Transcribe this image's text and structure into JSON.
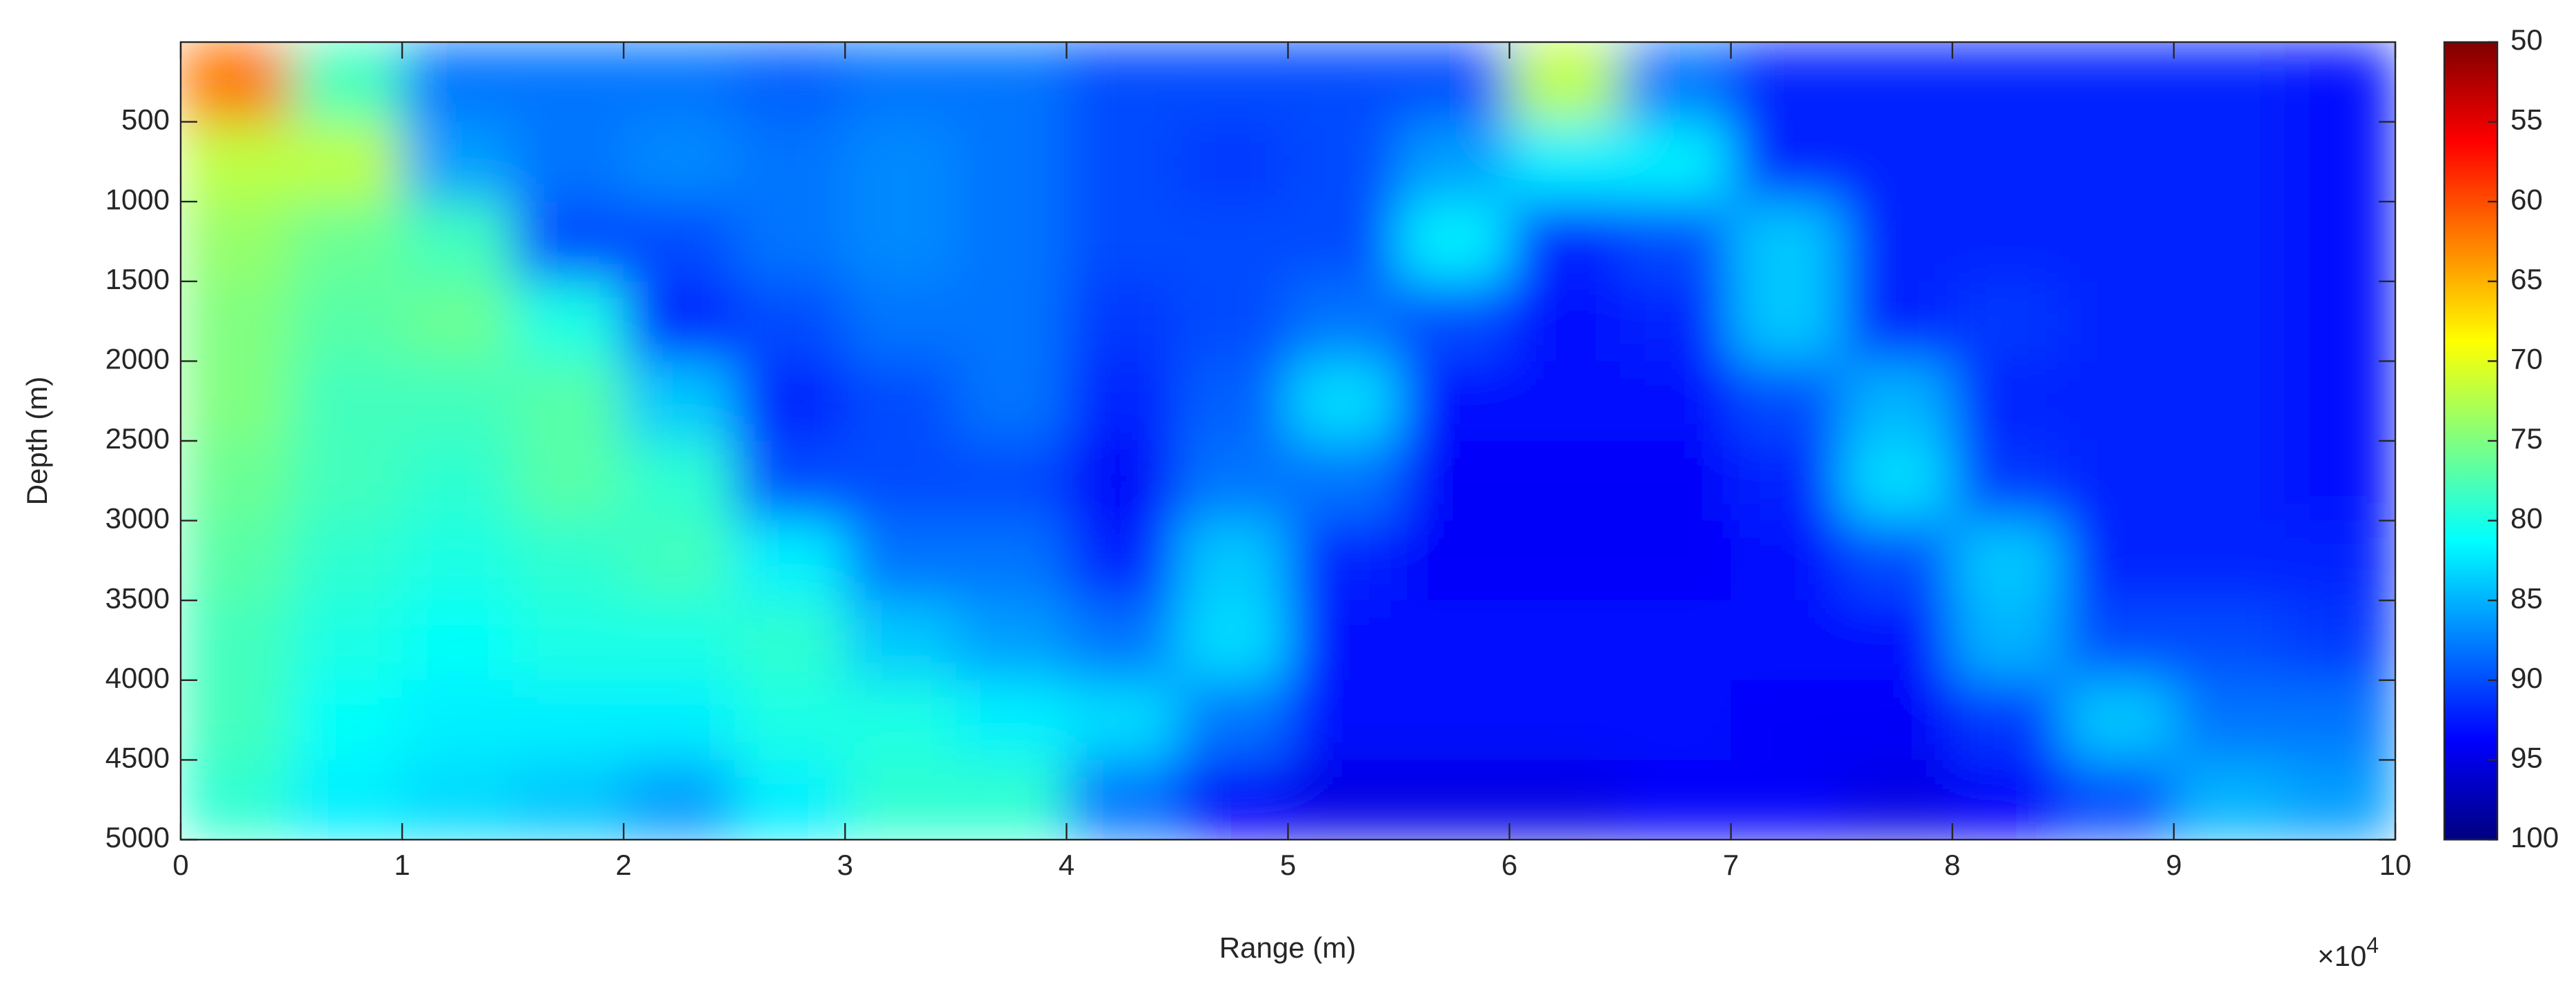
{
  "chart_data": {
    "type": "heatmap",
    "x_label": "Range (m)",
    "y_label": "Depth (m)",
    "x_multiplier": {
      "base": "×10",
      "exponent": "4"
    },
    "x": [
      2500,
      7500,
      12500,
      17500,
      22500,
      27500,
      32500,
      37500,
      42500,
      47500,
      52500,
      57500,
      62500,
      67500,
      72500,
      77500,
      82500,
      87500,
      92500,
      97500
    ],
    "y": [
      250,
      750,
      1250,
      1750,
      2250,
      2750,
      3250,
      3750,
      4250,
      4750
    ],
    "z": [
      [
        62,
        78,
        88,
        88,
        88,
        89,
        88,
        88,
        90,
        90,
        90,
        90,
        72,
        88,
        92,
        92,
        92,
        92,
        92,
        93
      ],
      [
        72,
        72,
        86,
        88,
        87,
        88,
        87,
        88,
        90,
        91,
        90,
        86,
        82,
        82,
        92,
        92,
        92,
        92,
        92,
        93
      ],
      [
        74,
        76,
        78,
        90,
        90,
        88,
        87,
        88,
        90,
        90,
        90,
        82,
        92,
        90,
        84,
        92,
        92,
        92,
        92,
        93
      ],
      [
        75,
        77,
        76,
        80,
        92,
        90,
        88,
        88,
        91,
        90,
        88,
        90,
        93,
        92,
        84,
        92,
        91,
        92,
        92,
        93
      ],
      [
        75,
        78,
        78,
        77,
        84,
        92,
        90,
        88,
        92,
        89,
        83,
        93,
        93,
        93,
        90,
        85,
        92,
        92,
        92,
        93
      ],
      [
        76,
        78,
        79,
        77,
        79,
        90,
        90,
        90,
        94,
        88,
        88,
        94,
        94,
        94,
        92,
        83,
        91,
        92,
        92,
        93
      ],
      [
        77,
        79,
        80,
        79,
        78,
        82,
        88,
        88,
        92,
        84,
        92,
        94,
        94,
        94,
        93,
        90,
        84,
        92,
        92,
        92
      ],
      [
        78,
        80,
        81,
        80,
        80,
        79,
        84,
        86,
        88,
        83,
        93,
        93,
        93,
        93,
        93,
        93,
        85,
        90,
        90,
        91
      ],
      [
        78,
        81,
        82,
        82,
        82,
        80,
        80,
        82,
        83,
        88,
        93,
        93,
        93,
        93,
        94,
        94,
        91,
        84,
        88,
        88
      ],
      [
        79,
        82,
        83,
        84,
        86,
        82,
        79,
        79,
        88,
        94,
        95,
        95,
        95,
        94,
        94,
        95,
        94,
        90,
        85,
        86
      ]
    ],
    "xlim": [
      0,
      100000
    ],
    "xticks": [
      {
        "value": 0,
        "label": "0"
      },
      {
        "value": 10000,
        "label": "1"
      },
      {
        "value": 20000,
        "label": "2"
      },
      {
        "value": 30000,
        "label": "3"
      },
      {
        "value": 40000,
        "label": "4"
      },
      {
        "value": 50000,
        "label": "5"
      },
      {
        "value": 60000,
        "label": "6"
      },
      {
        "value": 70000,
        "label": "7"
      },
      {
        "value": 80000,
        "label": "8"
      },
      {
        "value": 90000,
        "label": "9"
      },
      {
        "value": 100000,
        "label": "10"
      }
    ],
    "ylim": [
      0,
      5000
    ],
    "y_reversed": true,
    "yticks": [
      500,
      1000,
      1500,
      2000,
      2500,
      3000,
      3500,
      4000,
      4500,
      5000
    ],
    "colormap": "jet",
    "colormap_reversed": true,
    "clim": [
      50,
      100
    ],
    "colorbar_ticks": [
      50,
      55,
      60,
      65,
      70,
      75,
      80,
      85,
      90,
      95,
      100
    ],
    "colorbar_reversed": true
  }
}
